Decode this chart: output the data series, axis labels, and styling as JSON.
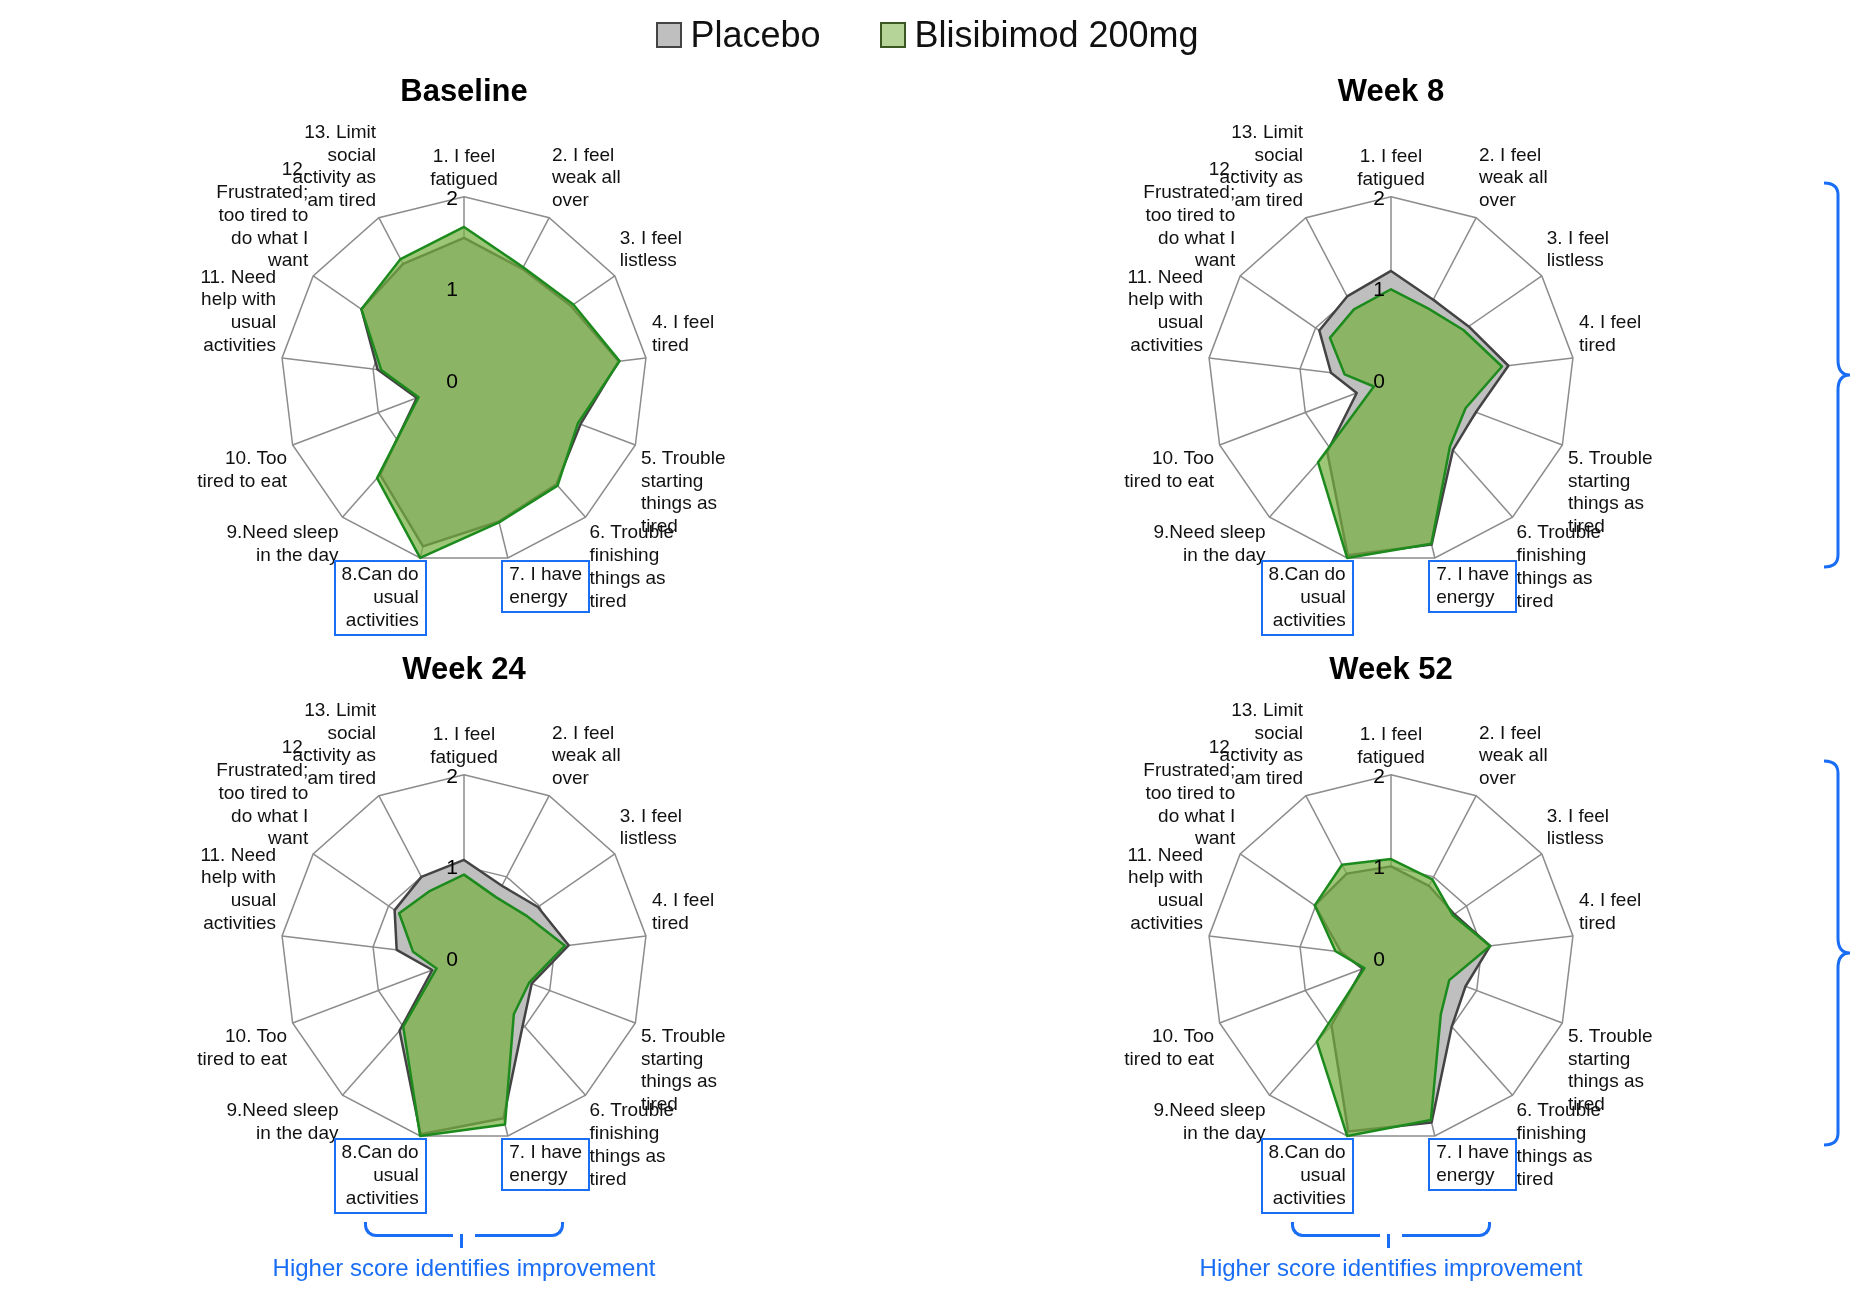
{
  "chart_data": [
    {
      "type": "radar",
      "title": "Baseline",
      "categories": [
        "1. I feel fatigued",
        "2. I feel weak all over",
        "3. I feel listless",
        "4. I feel tired",
        "5. Trouble starting things as tired",
        "6. Trouble finishing things as tired",
        "7. I have energy",
        "8.Can do usual activities",
        "9.Need sleep in the day",
        "10. Too tired to eat",
        "11. Need help with usual activities",
        "12. Frustrated; too tired to do what I want",
        "13. Limit social activity as am tired"
      ],
      "series": [
        {
          "name": "Placebo",
          "color": "#bfbfbf",
          "values": [
            1.55,
            1.37,
            1.42,
            1.7,
            1.36,
            1.52,
            1.59,
            1.87,
            1.38,
            0.55,
            0.95,
            1.36,
            1.43
          ]
        },
        {
          "name": "Blisibimod 200mg",
          "color": "#77b043",
          "values": [
            1.67,
            1.39,
            1.45,
            1.71,
            1.33,
            1.54,
            1.6,
            2.0,
            1.43,
            0.53,
            0.91,
            1.36,
            1.49
          ]
        }
      ],
      "ylim": [
        0,
        2
      ],
      "yticks": [
        0,
        1,
        2
      ],
      "grid": true,
      "marker": "none",
      "legend": "top"
    },
    {
      "type": "radar",
      "title": "Week 8",
      "categories": [
        "1. I feel fatigued",
        "2. I feel weak all over",
        "3. I feel listless",
        "4. I feel tired",
        "5. Trouble starting things as tired",
        "6. Trouble finishing things as tired",
        "7. I have energy",
        "8.Can do usual activities",
        "9.Need sleep in the day",
        "10. Too tired to eat",
        "11. Need help with usual activities",
        "12. Frustrated; too tired to do what I want",
        "13. Limit social activity as am tired"
      ],
      "series": [
        {
          "color": "#bfbfbf",
          "values": [
            1.19,
            0.99,
            1.03,
            1.29,
            0.99,
            1.02,
            1.85,
            1.97,
            1.05,
            0.4,
            0.66,
            0.95,
            1.03
          ]
        },
        {
          "color": "#77b043",
          "values": [
            0.99,
            0.88,
            0.96,
            1.22,
            0.87,
            0.97,
            1.84,
            2.0,
            1.2,
            0.2,
            0.51,
            0.81,
            0.87
          ]
        }
      ],
      "ylim": [
        0,
        2
      ],
      "yticks": [
        0,
        1,
        2
      ],
      "grid": true,
      "marker": "none"
    },
    {
      "type": "radar",
      "title": "Week 24",
      "categories": [
        "1. I feel fatigued",
        "2. I feel weak all over",
        "3. I feel listless",
        "4. I feel tired",
        "5. Trouble starting things as tired",
        "6. Trouble finishing things as tired",
        "7. I have energy",
        "8.Can do usual activities",
        "9.Need sleep in the day",
        "10. Too tired to eat",
        "11. Need help with usual activities",
        "12. Frustrated; too tired to do what I want",
        "13. Limit social activity as am tired"
      ],
      "series": [
        {
          "color": "#bfbfbf",
          "values": [
            1.07,
            0.89,
            0.98,
            1.15,
            0.79,
            0.97,
            1.8,
            1.98,
            1.06,
            0.37,
            0.74,
            0.92,
            1.0
          ]
        },
        {
          "color": "#77b043",
          "values": [
            0.91,
            0.75,
            0.82,
            1.11,
            0.76,
            0.82,
            1.87,
            2.0,
            1.0,
            0.32,
            0.56,
            0.86,
            0.82
          ]
        }
      ],
      "ylim": [
        0,
        2
      ],
      "yticks": [
        0,
        1,
        2
      ],
      "grid": true,
      "marker": "none",
      "annotations": [
        "Higher score identifies improvement"
      ]
    },
    {
      "type": "radar",
      "title": "Week 52",
      "categories": [
        "1. I feel fatigued",
        "2. I feel weak all over",
        "3. I feel listless",
        "4. I feel tired",
        "5. Trouble starting things as tired",
        "6. Trouble finishing things as tired",
        "7. I have energy",
        "8.Can do usual activities",
        "9.Need sleep in the day",
        "10. Too tired to eat",
        "11. Need help with usual activities",
        "12. Frustrated; too tired to do what I want",
        "13. Limit social activity as am tired"
      ],
      "series": [
        {
          "color": "#bfbfbf",
          "values": [
            1.0,
            0.89,
            0.84,
            1.09,
            0.87,
            1.0,
            1.85,
            1.95,
            0.98,
            0.33,
            0.55,
            1.01,
            1.04
          ]
        },
        {
          "color": "#77b043",
          "values": [
            1.08,
            0.97,
            0.82,
            1.09,
            0.68,
            0.82,
            1.82,
            2.0,
            1.22,
            0.31,
            0.61,
            1.01,
            1.15
          ]
        }
      ],
      "ylim": [
        0,
        2
      ],
      "yticks": [
        0,
        1,
        2
      ],
      "grid": true,
      "marker": "none",
      "annotations": [
        "Higher score identifies improvement"
      ]
    }
  ]
}
